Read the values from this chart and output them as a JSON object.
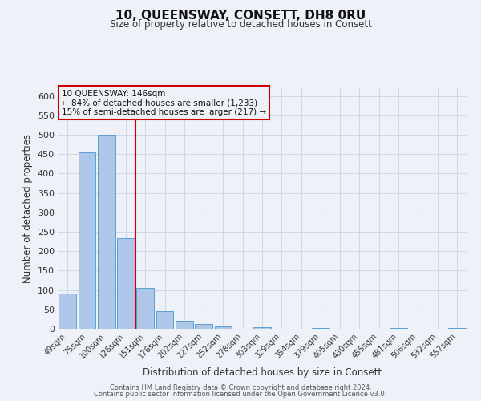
{
  "title": "10, QUEENSWAY, CONSETT, DH8 0RU",
  "subtitle": "Size of property relative to detached houses in Consett",
  "xlabel": "Distribution of detached houses by size in Consett",
  "ylabel": "Number of detached properties",
  "categories": [
    "49sqm",
    "75sqm",
    "100sqm",
    "126sqm",
    "151sqm",
    "176sqm",
    "202sqm",
    "227sqm",
    "252sqm",
    "278sqm",
    "303sqm",
    "329sqm",
    "354sqm",
    "379sqm",
    "405sqm",
    "430sqm",
    "455sqm",
    "481sqm",
    "506sqm",
    "532sqm",
    "557sqm"
  ],
  "values": [
    90,
    455,
    500,
    233,
    105,
    46,
    20,
    12,
    7,
    0,
    5,
    0,
    0,
    3,
    0,
    0,
    0,
    3,
    0,
    0,
    3
  ],
  "bar_color": "#aec6e8",
  "bar_edge_color": "#5a9fd4",
  "vline_x_index": 3.5,
  "vline_color": "#cc0000",
  "annotation_line1": "10 QUEENSWAY: 146sqm",
  "annotation_line2": "← 84% of detached houses are smaller (1,233)",
  "annotation_line3": "15% of semi-detached houses are larger (217) →",
  "annotation_box_color": "#cc0000",
  "ylim": [
    0,
    620
  ],
  "yticks": [
    0,
    50,
    100,
    150,
    200,
    250,
    300,
    350,
    400,
    450,
    500,
    550,
    600
  ],
  "grid_color": "#d0d8e8",
  "background_color": "#eef2f8",
  "footer_line1": "Contains HM Land Registry data © Crown copyright and database right 2024.",
  "footer_line2": "Contains public sector information licensed under the Open Government Licence v3.0."
}
